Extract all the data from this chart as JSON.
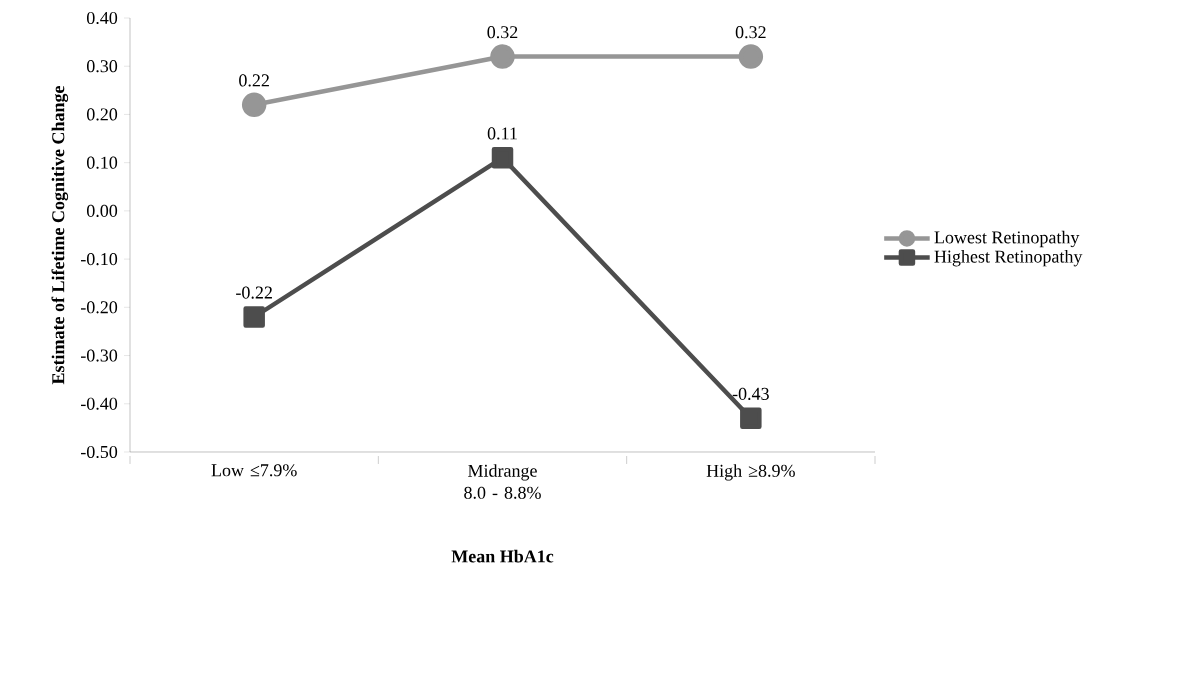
{
  "chart_data": {
    "type": "line",
    "xlabel": "Mean HbA1c",
    "ylabel": "Estimate of Lifetime Cognitive Change",
    "categories": [
      "Low ≤7.9%",
      "Midrange 8.0 - 8.8%",
      "High ≥8.9%"
    ],
    "series": [
      {
        "name": "Lowest Retinopathy",
        "color": "#969696",
        "marker": "circle",
        "values": [
          0.22,
          0.32,
          0.32
        ]
      },
      {
        "name": "Highest Retinopathy",
        "color": "#4d4d4d",
        "marker": "square",
        "values": [
          -0.22,
          0.11,
          -0.43
        ]
      }
    ],
    "ylim": [
      -0.5,
      0.4
    ],
    "yticks": [
      {
        "value": -0.5,
        "label": "-0.50"
      },
      {
        "value": -0.4,
        "label": "-0.40"
      },
      {
        "value": -0.3,
        "label": "-0.30"
      },
      {
        "value": -0.2,
        "label": "-0.20"
      },
      {
        "value": -0.1,
        "label": "-0.10"
      },
      {
        "value": 0,
        "label": "0.00"
      },
      {
        "value": 0.1,
        "label": "0.10"
      },
      {
        "value": 0.2,
        "label": "0.20"
      },
      {
        "value": 0.3,
        "label": "0.30"
      },
      {
        "value": 0.4,
        "label": "0.40"
      }
    ],
    "grid": false,
    "legend": "right",
    "data_labels": true,
    "line_style": "solid"
  }
}
